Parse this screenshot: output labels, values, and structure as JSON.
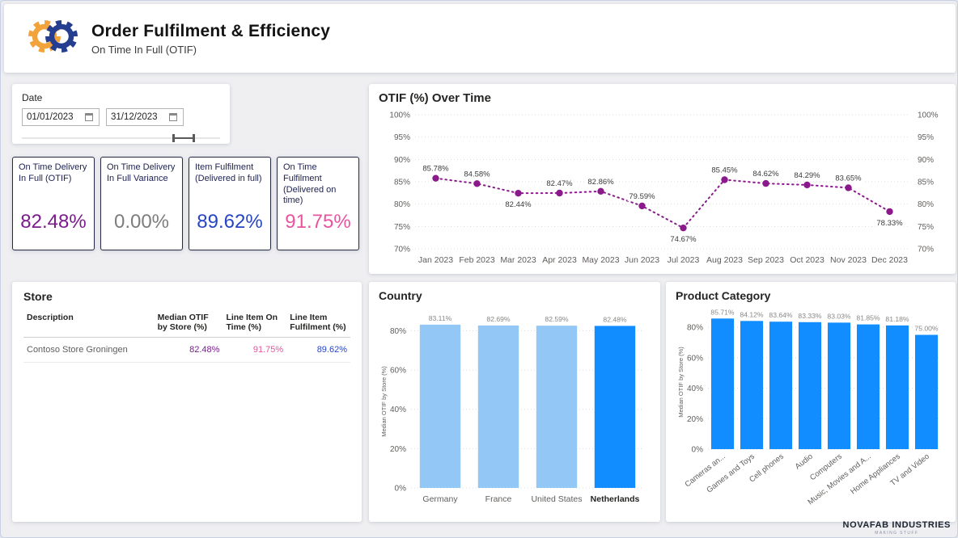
{
  "header": {
    "title": "Order Fulfilment & Efficiency",
    "subtitle": "On Time In Full (OTIF)",
    "logo_colors": {
      "orange": "#F2A33C",
      "blue": "#253E90"
    }
  },
  "date_filter": {
    "label": "Date",
    "start": "01/01/2023",
    "end": "31/12/2023"
  },
  "kpis": [
    {
      "label": "On Time Delivery In Full (OTIF)",
      "value": "82.48%",
      "color": "#7A1C8C"
    },
    {
      "label": "On Time Delivery In Full Variance",
      "value": "0.00%",
      "color": "#7d7d7d"
    },
    {
      "label": "Item Fulfilment (Delivered in full)",
      "value": "89.62%",
      "color": "#2645C4"
    },
    {
      "label": "On Time Fulfilment (Delivered on time)",
      "value": "91.75%",
      "color": "#E9539F"
    }
  ],
  "store_table": {
    "title": "Store",
    "columns": [
      "Description",
      "Median OTIF by Store (%)",
      "Line Item On Time (%)",
      "Line Item Fulfilment (%)"
    ],
    "rows": [
      {
        "description": "Contoso Store Groningen",
        "median_otif": "82.48%",
        "line_item_on_time": "91.75%",
        "line_item_fulfilment": "89.62%"
      }
    ],
    "value_colors": {
      "median_otif": "#7A1C8C",
      "line_item_on_time": "#E9539F",
      "line_item_fulfilment": "#2645C4"
    }
  },
  "chart_data": [
    {
      "type": "line",
      "title": "OTIF (%) Over Time",
      "x": [
        "Jan 2023",
        "Feb 2023",
        "Mar 2023",
        "Apr 2023",
        "May 2023",
        "Jun 2023",
        "Jul 2023",
        "Aug 2023",
        "Sep 2023",
        "Oct 2023",
        "Nov 2023",
        "Dec 2023"
      ],
      "values": [
        85.78,
        84.58,
        82.44,
        82.47,
        82.86,
        79.59,
        74.67,
        85.45,
        84.62,
        84.29,
        83.65,
        78.33
      ],
      "labels": [
        "85.78%",
        "84.58%",
        "82.44%",
        "82.47%",
        "82.86%",
        "79.59%",
        "74.67%",
        "85.45%",
        "84.62%",
        "84.29%",
        "83.65%",
        "78.33%"
      ],
      "label_below_indices": [
        2,
        6,
        11
      ],
      "ylim": [
        70,
        100
      ],
      "yticks": [
        100,
        95,
        90,
        85,
        80,
        75,
        70
      ],
      "dual_axis": true,
      "grid": "dotted",
      "line_color": "#8A1A8C",
      "line_style": "dotted"
    },
    {
      "type": "bar",
      "title": "Country",
      "categories": [
        "Germany",
        "France",
        "United States",
        "Netherlands"
      ],
      "values": [
        83.11,
        82.69,
        82.59,
        82.48
      ],
      "labels": [
        "83.11%",
        "82.69%",
        "82.59%",
        "82.48%"
      ],
      "ylabel": "Median OTIF by Store (%)",
      "ylim": [
        0,
        88
      ],
      "yticks": [
        0,
        20,
        40,
        60,
        80
      ],
      "grid": "dotted",
      "selected": "Netherlands",
      "bar_color": "#93C7F5",
      "selected_color": "#118DFF"
    },
    {
      "type": "bar",
      "title": "Product Category",
      "categories": [
        "Cameras an...",
        "Games and Toys",
        "Cell phones",
        "Audio",
        "Computers",
        "Music, Movies and A...",
        "Home Appliances",
        "TV and Video"
      ],
      "values": [
        85.71,
        84.12,
        83.64,
        83.33,
        83.03,
        81.85,
        81.18,
        75.0
      ],
      "labels": [
        "85.71%",
        "84.12%",
        "83.64%",
        "83.33%",
        "83.03%",
        "81.85%",
        "81.18%",
        "75.00%"
      ],
      "ylabel": "Median OTIF by Store (%)",
      "ylim": [
        0,
        88
      ],
      "yticks": [
        0,
        20,
        40,
        60,
        80
      ],
      "grid": "dotted",
      "rotated_labels": true,
      "bar_color": "#118DFF"
    }
  ],
  "footer": {
    "brand": "NOVAFAB INDUSTRIES",
    "tagline": "MAKING STUFF"
  }
}
